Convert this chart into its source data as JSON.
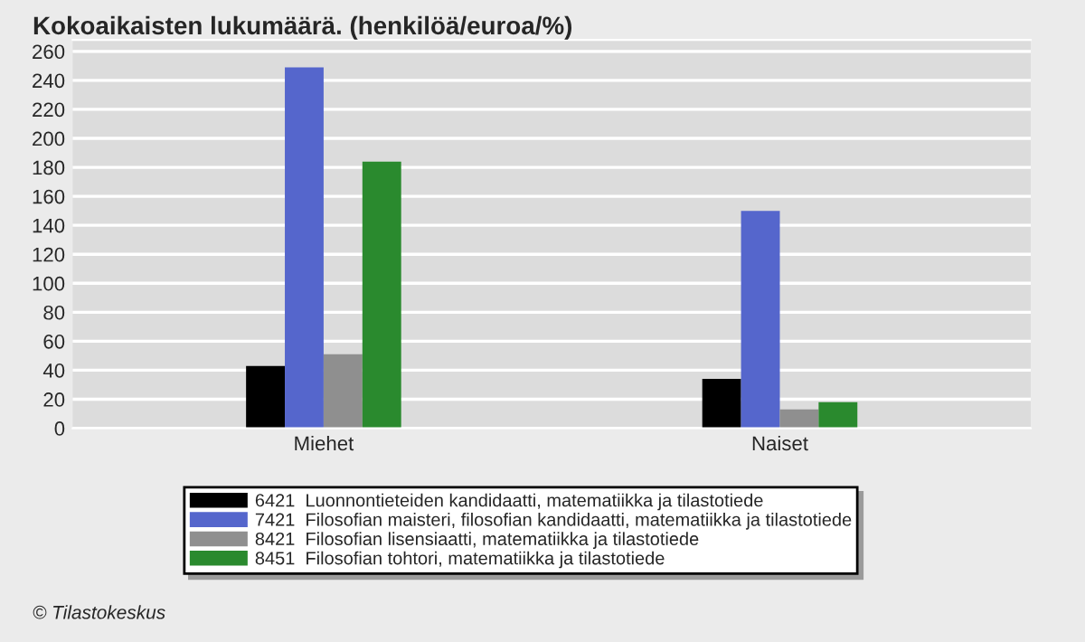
{
  "chart_data": {
    "type": "bar",
    "title": "Kokoaikaisten lukumäärä. (henkilöä/euroa/%)",
    "categories": [
      "Miehet",
      "Naiset"
    ],
    "series": [
      {
        "name": "6421  Luonnontieteiden kandidaatti, matematiikka ja tilastotiede",
        "color": "#000000",
        "values": [
          43,
          34
        ]
      },
      {
        "name": "7421  Filosofian maisteri, filosofian kandidaatti, matematiikka ja tilastotiede",
        "color": "#5566cc",
        "values": [
          249,
          150
        ]
      },
      {
        "name": "8421  Filosofian lisensiaatti, matematiikka ja tilastotiede",
        "color": "#8f8f8f",
        "values": [
          51,
          13
        ]
      },
      {
        "name": "8451  Filosofian tohtori, matematiikka ja tilastotiede",
        "color": "#2a8a2e",
        "values": [
          184,
          18
        ]
      }
    ],
    "ylim": [
      0,
      268
    ],
    "yticks": [
      0,
      20,
      40,
      60,
      80,
      100,
      120,
      140,
      160,
      180,
      200,
      220,
      240,
      260
    ],
    "grid": "y",
    "legend": "bottom",
    "annotations": [
      "© Tilastokeskus"
    ]
  }
}
